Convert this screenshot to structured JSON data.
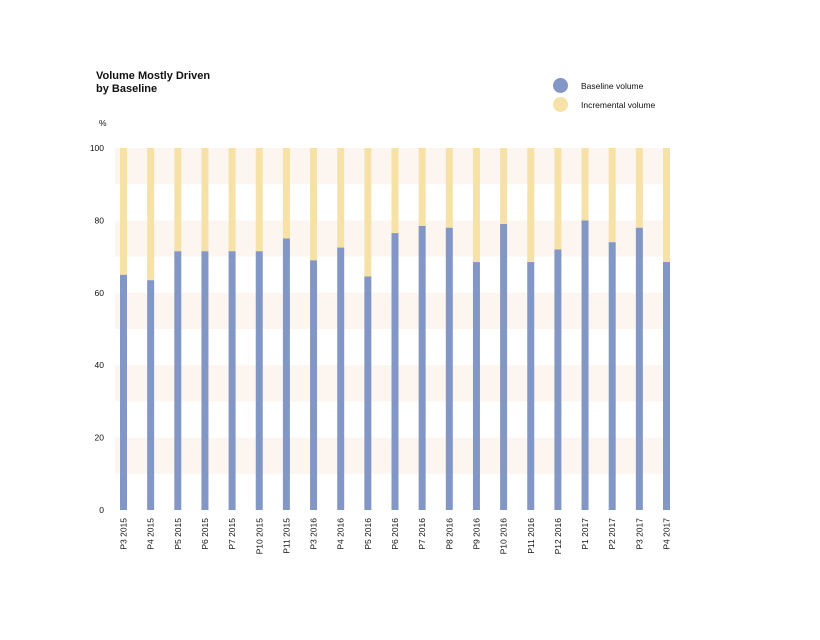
{
  "chart_data": {
    "type": "bar",
    "stacked": true,
    "title": "Volume Mostly Driven",
    "subtitle": "by Baseline",
    "ylabel": "%",
    "xlabel": "",
    "ylim": [
      0,
      100
    ],
    "yticks": [
      0,
      20,
      40,
      60,
      80,
      100
    ],
    "legend_position": "top-right",
    "grid": "alternating horizontal bands",
    "categories": [
      "P3 2015",
      "P4 2015",
      "P5 2015",
      "P6 2015",
      "P7 2015",
      "P10 2015",
      "P11 2015",
      "P3 2016",
      "P4 2016",
      "P5 2016",
      "P6 2016",
      "P7 2016",
      "P8 2016",
      "P9 2016",
      "P10 2016",
      "P11 2016",
      "P12 2016",
      "P1 2017",
      "P2 2017",
      "P3 2017",
      "P4 2017"
    ],
    "series": [
      {
        "name": "Baseline volume",
        "color": "#8297c6",
        "values": [
          65,
          63.5,
          71.5,
          71.5,
          71.5,
          71.5,
          75,
          69,
          72.5,
          64.5,
          76.5,
          78.5,
          78,
          68.5,
          79,
          68.5,
          72,
          80,
          74,
          78,
          68.5
        ]
      },
      {
        "name": "Incremental volume",
        "color": "#f6e2a6",
        "values": [
          35,
          36.5,
          28.5,
          28.5,
          28.5,
          28.5,
          25,
          31,
          27.5,
          35.5,
          23.5,
          21.5,
          22,
          31.5,
          21,
          31.5,
          28,
          20,
          26,
          22,
          31.5
        ]
      }
    ],
    "band_color": "#fdf6f0"
  }
}
